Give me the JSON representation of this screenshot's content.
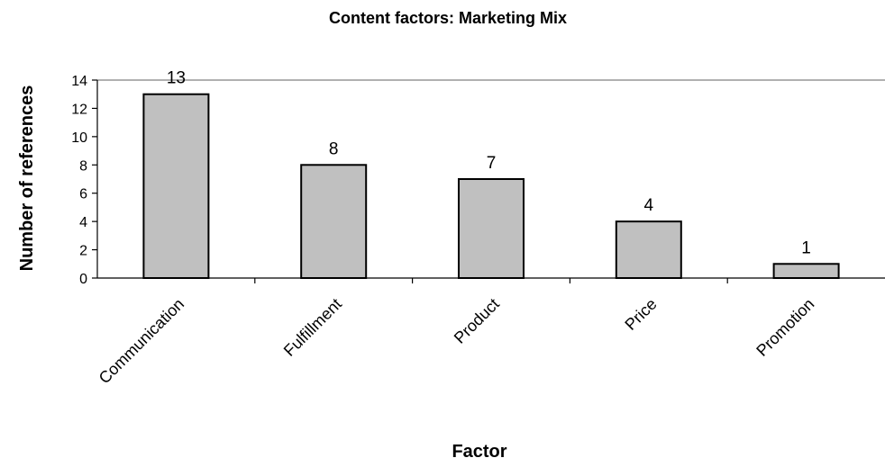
{
  "chart_data": {
    "type": "bar",
    "title": "Content factors: Marketing Mix",
    "xlabel": "Factor",
    "ylabel": "Number of references",
    "categories": [
      "Communication",
      "Fulfillment",
      "Product",
      "Price",
      "Promotion"
    ],
    "values": [
      13,
      8,
      7,
      4,
      1
    ],
    "ylim": [
      0,
      14
    ],
    "yticks": [
      "0",
      "2",
      "4",
      "6",
      "8",
      "10",
      "12",
      "14"
    ],
    "data_labels": [
      "13",
      "8",
      "7",
      "4",
      "1"
    ],
    "grid": false,
    "legend": "none",
    "colors": {
      "bar_fill": "#c0c0c0",
      "bar_stroke": "#000000",
      "axis": "#000000",
      "frame": "#808080"
    }
  }
}
